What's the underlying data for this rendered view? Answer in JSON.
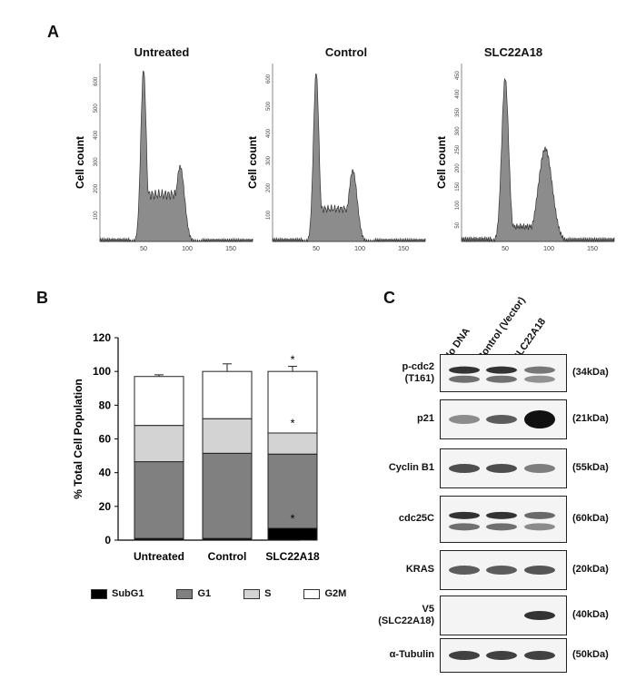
{
  "panels": {
    "A": "A",
    "B": "B",
    "C": "C"
  },
  "histograms": {
    "ylabel": "Cell count",
    "items": [
      {
        "title": "Untreated",
        "yticks": [
          "100",
          "200",
          "300",
          "400",
          "500",
          "600"
        ],
        "ymax": 650,
        "g1_height": 640,
        "g2_height": 280,
        "s_level": 175
      },
      {
        "title": "Control",
        "yticks": [
          "100",
          "200",
          "300",
          "400",
          "500",
          "600"
        ],
        "ymax": 640,
        "g1_height": 620,
        "g2_height": 260,
        "s_level": 120
      },
      {
        "title": "SLC22A18",
        "yticks": [
          "50",
          "100",
          "150",
          "200",
          "250",
          "300",
          "350",
          "400",
          "450"
        ],
        "ymax": 470,
        "g1_height": 440,
        "g2_height": 250,
        "s_level": 40
      }
    ],
    "xticks": [
      "50",
      "100",
      "150"
    ]
  },
  "chart_data": {
    "type": "bar",
    "stacked": true,
    "ylabel": "% Total Cell Population",
    "ylim": [
      0,
      120
    ],
    "yticks": [
      "0",
      "20",
      "40",
      "60",
      "80",
      "100",
      "120"
    ],
    "categories": [
      "Untreated",
      "Control",
      "SLC22A18"
    ],
    "series": [
      {
        "name": "SubG1",
        "color": "#000000",
        "values": [
          1,
          1,
          7
        ],
        "errors": [
          0.5,
          0.5,
          2
        ]
      },
      {
        "name": "G1",
        "color": "#808080",
        "values": [
          45.5,
          50.5,
          44
        ],
        "errors": [
          1.5,
          2,
          1
        ]
      },
      {
        "name": "S",
        "color": "#d3d3d3",
        "values": [
          21.5,
          20.5,
          12.5
        ],
        "errors": [
          2,
          1.5,
          0
        ]
      },
      {
        "name": "G2M",
        "color": "#ffffff",
        "values": [
          29,
          28,
          36.5
        ],
        "errors": [
          1,
          4.5,
          3
        ]
      }
    ],
    "annotations": [
      "*",
      "*",
      "*"
    ]
  },
  "blot": {
    "lanes": [
      "No DNA",
      "Control (Vector)",
      "SLC22A18"
    ],
    "rows": [
      {
        "name": "p-cdc2\n(T161)",
        "kda": "(34kDa)"
      },
      {
        "name": "p21",
        "kda": "(21kDa)"
      },
      {
        "name": "Cyclin B1",
        "kda": "(55kDa)"
      },
      {
        "name": "cdc25C",
        "kda": "(60kDa)"
      },
      {
        "name": "KRAS",
        "kda": "(20kDa)"
      },
      {
        "name": "V5\n(SLC22A18)",
        "kda": "(40kDa)"
      },
      {
        "name": "α-Tubulin",
        "kda": "(50kDa)"
      }
    ]
  }
}
